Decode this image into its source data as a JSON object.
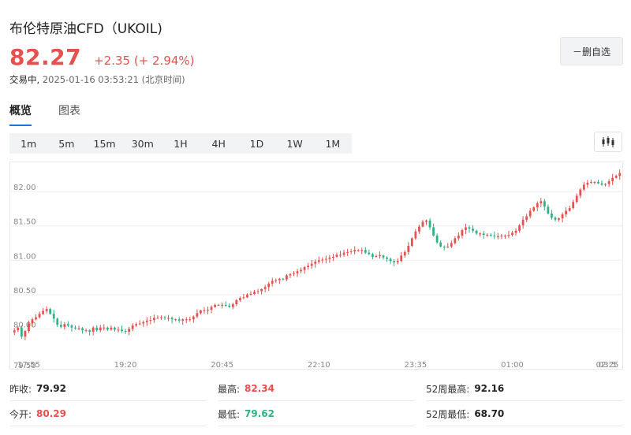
{
  "header": {
    "title": "布伦特原油CFD（UKOIL)",
    "price": "82.27",
    "change": "+2.35 (+ 2.94%)",
    "status": "交易中,",
    "timestamp": "2025-01-16 03:53:21 (北京时间)",
    "remove_watchlist_label": "－删自选"
  },
  "colors": {
    "up": "#e84f4f",
    "down": "#2db383",
    "accent": "#1e73d8"
  },
  "tabs": [
    {
      "label": "概览",
      "active": true
    },
    {
      "label": "图表",
      "active": false
    }
  ],
  "intervals": [
    {
      "label": "1m",
      "active": false
    },
    {
      "label": "5m",
      "active": true
    },
    {
      "label": "15m",
      "active": false
    },
    {
      "label": "30m",
      "active": false
    },
    {
      "label": "1H",
      "active": false
    },
    {
      "label": "4H",
      "active": false
    },
    {
      "label": "1D",
      "active": false
    },
    {
      "label": "1W",
      "active": false
    },
    {
      "label": "1M",
      "active": false
    }
  ],
  "chart_type_icon": "candlestick-icon",
  "chart_data": {
    "type": "candlestick",
    "ylim": [
      79.5,
      82.3
    ],
    "y_ticks": [
      {
        "value": 80.0,
        "label": "80.00"
      },
      {
        "value": 80.5,
        "label": "80.50"
      },
      {
        "value": 81.0,
        "label": "81.00"
      },
      {
        "value": 81.5,
        "label": "81.50"
      },
      {
        "value": 82.0,
        "label": "82.00"
      }
    ],
    "y_bottom_label": "79.50",
    "x_ticks": [
      {
        "index": 4,
        "label": "17:55"
      },
      {
        "index": 31,
        "label": "19:20"
      },
      {
        "index": 58,
        "label": "20:45"
      },
      {
        "index": 85,
        "label": "22:10"
      },
      {
        "index": 112,
        "label": "23:35"
      },
      {
        "index": 139,
        "label": "01:00"
      },
      {
        "index": 166,
        "label": "02:25"
      },
      {
        "index": 193,
        "label": "03:5"
      }
    ],
    "closes": [
      79.98,
      80.02,
      79.89,
      79.97,
      80.08,
      80.14,
      80.17,
      80.22,
      80.26,
      80.29,
      80.22,
      80.15,
      80.06,
      80.03,
      80.07,
      80.05,
      80.02,
      80.01,
      80.01,
      79.98,
      79.98,
      79.96,
      80.02,
      79.98,
      80.02,
      80.02,
      79.99,
      80.02,
      79.99,
      79.99,
      79.97,
      79.96,
      80.0,
      80.05,
      80.07,
      80.08,
      80.1,
      80.12,
      80.13,
      80.16,
      80.16,
      80.17,
      80.16,
      80.16,
      80.14,
      80.14,
      80.12,
      80.14,
      80.14,
      80.14,
      80.18,
      80.23,
      80.27,
      80.27,
      80.28,
      80.32,
      80.35,
      80.35,
      80.35,
      80.34,
      80.32,
      80.36,
      80.42,
      80.45,
      80.46,
      80.5,
      80.51,
      80.54,
      80.55,
      80.58,
      80.61,
      80.66,
      80.7,
      80.71,
      80.73,
      80.72,
      80.78,
      80.8,
      80.81,
      80.84,
      80.86,
      80.9,
      80.92,
      80.95,
      80.98,
      81.0,
      81.01,
      81.02,
      81.04,
      81.05,
      81.08,
      81.08,
      81.11,
      81.12,
      81.13,
      81.15,
      81.15,
      81.15,
      81.11,
      81.09,
      81.05,
      81.06,
      81.07,
      81.04,
      81.02,
      80.99,
      80.97,
      80.99,
      81.07,
      81.12,
      81.21,
      81.32,
      81.42,
      81.49,
      81.56,
      81.58,
      81.48,
      81.36,
      81.26,
      81.2,
      81.19,
      81.2,
      81.25,
      81.32,
      81.36,
      81.44,
      81.48,
      81.46,
      81.43,
      81.39,
      81.39,
      81.37,
      81.37,
      81.36,
      81.35,
      81.35,
      81.36,
      81.36,
      81.37,
      81.4,
      81.43,
      81.51,
      81.59,
      81.64,
      81.72,
      81.77,
      81.83,
      81.86,
      81.78,
      81.68,
      81.62,
      81.59,
      81.61,
      81.67,
      81.72,
      81.76,
      81.85,
      81.94,
      82.03,
      82.1,
      82.13,
      82.14,
      82.14,
      82.12,
      82.1,
      82.11,
      82.15,
      82.2,
      82.23,
      82.27
    ]
  },
  "stats": [
    [
      {
        "label": "昨收:",
        "value": "79.92",
        "color": "#222222"
      },
      {
        "label": "最高:",
        "value": "82.34",
        "color": "#e84f4f"
      },
      {
        "label": "52周最高:",
        "value": "92.16",
        "color": "#222222"
      }
    ],
    [
      {
        "label": "今开:",
        "value": "80.29",
        "color": "#e84f4f"
      },
      {
        "label": "最低:",
        "value": "79.62",
        "color": "#2db383"
      },
      {
        "label": "52周最低:",
        "value": "68.70",
        "color": "#222222"
      }
    ]
  ]
}
